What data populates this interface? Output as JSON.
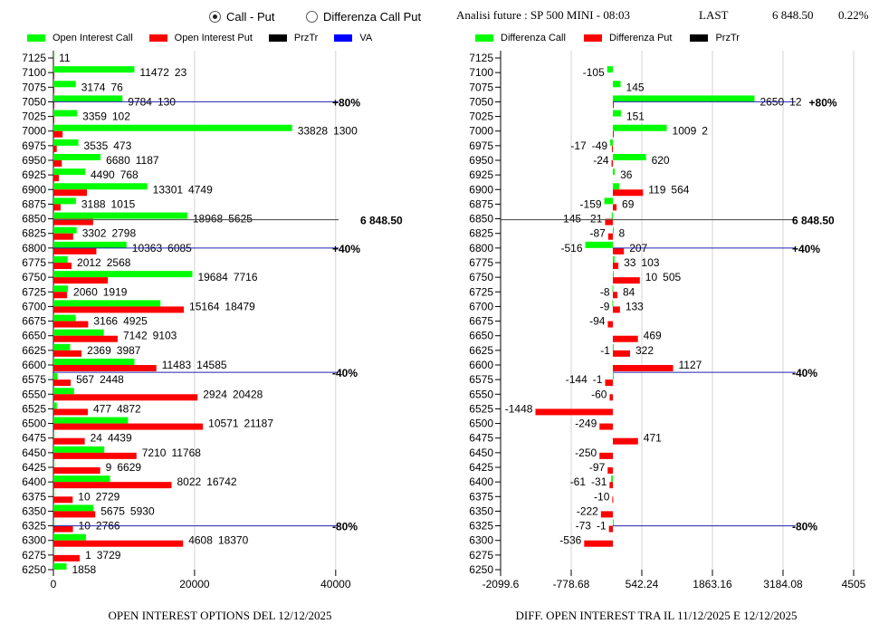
{
  "header": {
    "radio_options": [
      {
        "label": "Call - Put",
        "selected": true
      },
      {
        "label": "Differenza Call Put",
        "selected": false
      }
    ],
    "analysis_title": "Analisi future : SP 500 MINI - 08:03",
    "last_label": "LAST",
    "last_value": "6 848.50",
    "change_pct": "0.22%"
  },
  "colors": {
    "call": "#00ff00",
    "put": "#ff0000",
    "przTr": "#000000",
    "va": "#0000ff",
    "grid": "#d3d3d3"
  },
  "chart_data": [
    {
      "type": "bar",
      "orientation": "horizontal",
      "title": "OPEN INTEREST OPTIONS DEL 12/12/2025",
      "legend": [
        "Open Interest Call",
        "Open Interest Put",
        "PrzTr",
        "VA"
      ],
      "legend_placement": "top",
      "categories": [
        7125,
        7100,
        7075,
        7050,
        7025,
        7000,
        6975,
        6950,
        6925,
        6900,
        6875,
        6850,
        6825,
        6800,
        6775,
        6750,
        6725,
        6700,
        6675,
        6650,
        6625,
        6600,
        6575,
        6550,
        6525,
        6500,
        6475,
        6450,
        6425,
        6400,
        6375,
        6350,
        6325,
        6300,
        6275,
        6250
      ],
      "series": [
        {
          "name": "Open Interest Call",
          "values": [
            11,
            11472,
            3174,
            9784,
            3359,
            33828,
            3535,
            6680,
            4490,
            13301,
            3188,
            18968,
            3302,
            10363,
            2012,
            19684,
            2060,
            15164,
            3166,
            7142,
            2369,
            11483,
            567,
            2924,
            477,
            10571,
            24,
            7210,
            9,
            8022,
            10,
            5675,
            10,
            4608,
            1,
            1858
          ]
        },
        {
          "name": "Open Interest Put",
          "values": [
            null,
            23,
            76,
            130,
            102,
            1300,
            473,
            1187,
            768,
            4749,
            1015,
            5625,
            2798,
            6085,
            2568,
            7716,
            1919,
            18479,
            4925,
            9103,
            3987,
            14585,
            2448,
            20428,
            4872,
            21187,
            4439,
            11768,
            6629,
            16742,
            2729,
            5930,
            2766,
            18370,
            3729,
            null
          ]
        }
      ],
      "xlim": [
        0,
        44000
      ],
      "xticks": [
        "0",
        "20000",
        "40000"
      ],
      "xtick_values": [
        0,
        20000,
        40000
      ],
      "grid": true,
      "price_line": {
        "value": 6848.5,
        "label": "6 848.50"
      },
      "va_lines": [
        {
          "value": 7050,
          "label": "+80%"
        },
        {
          "value": 6800,
          "label": "+40%"
        },
        {
          "value": 6587.5,
          "label": "-40%"
        },
        {
          "value": 6325,
          "label": "-80%"
        }
      ]
    },
    {
      "type": "bar",
      "orientation": "horizontal",
      "title": "DIFF. OPEN INTEREST TRA IL 11/12/2025 E 12/12/2025",
      "legend": [
        "Differenza Call",
        "Differenza Put",
        "PrzTr"
      ],
      "legend_placement": "top",
      "categories": [
        7125,
        7100,
        7075,
        7050,
        7025,
        7000,
        6975,
        6950,
        6925,
        6900,
        6875,
        6850,
        6825,
        6800,
        6775,
        6750,
        6725,
        6700,
        6675,
        6650,
        6625,
        6600,
        6575,
        6550,
        6525,
        6500,
        6475,
        6450,
        6425,
        6400,
        6375,
        6350,
        6325,
        6300,
        6275,
        6250
      ],
      "series": [
        {
          "name": "Differenza Call",
          "values": [
            null,
            -105,
            145,
            2650,
            151,
            1009,
            -49,
            620,
            36,
            119,
            -159,
            -21,
            8,
            -516,
            33,
            10,
            -8,
            -9,
            null,
            null,
            -1,
            null,
            -1,
            null,
            null,
            null,
            null,
            null,
            null,
            -31,
            null,
            null,
            -1,
            null,
            null,
            null
          ]
        },
        {
          "name": "Differenza Put",
          "values": [
            null,
            null,
            null,
            12,
            null,
            2,
            -17,
            -24,
            null,
            564,
            69,
            -145,
            -87,
            207,
            103,
            505,
            84,
            133,
            -94,
            469,
            322,
            1127,
            -144,
            -60,
            -1448,
            -249,
            471,
            -250,
            -97,
            -61,
            -10,
            -222,
            -73,
            -536,
            null,
            null
          ]
        }
      ],
      "xlim": [
        -2099.6,
        4505
      ],
      "xticks": [
        "-2099.6",
        "-778.68",
        "542.24",
        "1863.16",
        "3184.08",
        "4505"
      ],
      "xtick_values": [
        -2099.6,
        -778.68,
        542.24,
        1863.16,
        3184.08,
        4505
      ],
      "grid": true,
      "price_line": {
        "value": 6848.5,
        "label": "6 848.50"
      },
      "va_lines": [
        {
          "value": 7050,
          "label": "+80%"
        },
        {
          "value": 6800,
          "label": "+40%"
        },
        {
          "value": 6587.5,
          "label": "-40%"
        },
        {
          "value": 6325,
          "label": "-80%"
        }
      ]
    }
  ]
}
